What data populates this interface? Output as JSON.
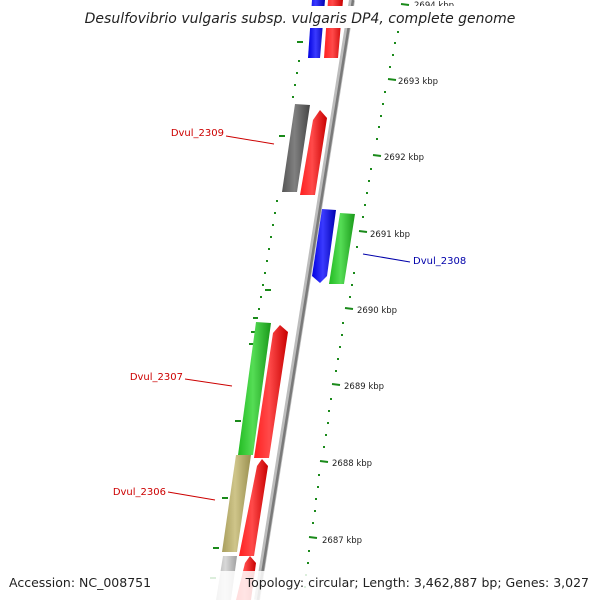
{
  "title": "Desulfovibrio vulgaris subsp. vulgaris DP4, complete genome",
  "accession_text": "Accession: NC_008751",
  "topology_text": "Topology: circular; Length: 3,462,887 bp; Genes: 3,027",
  "scale_labels": [
    "2694 kbp",
    "2693 kbp",
    "2692 kbp",
    "2691 kbp",
    "2690 kbp",
    "2689 kbp",
    "2688 kbp",
    "2687 kbp"
  ],
  "gene_labels": [
    {
      "text": "Dvul_2309",
      "color": "#cc0000"
    },
    {
      "text": "Dvul_2308",
      "color": "#0000aa"
    },
    {
      "text": "Dvul_2307",
      "color": "#cc0000"
    },
    {
      "text": "Dvul_2306",
      "color": "#cc0000"
    }
  ],
  "colors": {
    "forward_strand": "#ff0000",
    "reverse_strand": "#0000ff",
    "green_gene": "#33cc33",
    "grey_gene": "#666666",
    "khaki_gene": "#bdb373",
    "light_grey_gene": "#c0c0c0",
    "scale_ticks": "#1a8a1a",
    "backbone": "#888888"
  }
}
